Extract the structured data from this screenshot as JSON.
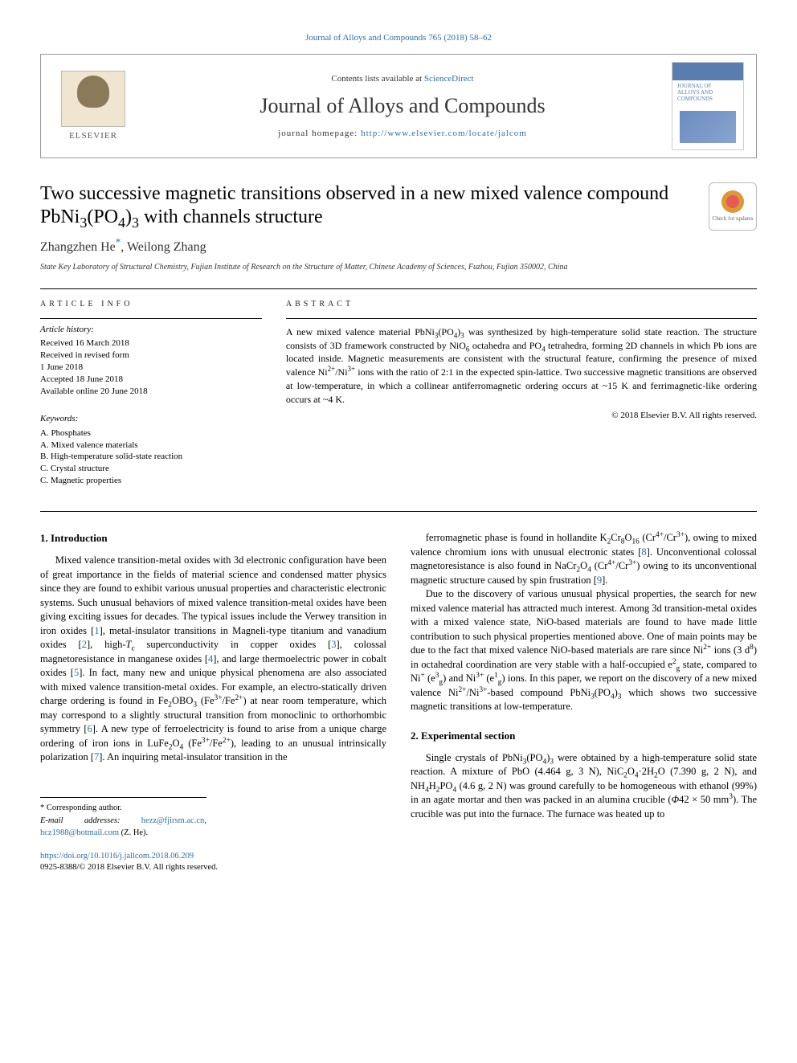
{
  "header": {
    "top_link_text": "Journal of Alloys and Compounds 765 (2018) 58–62",
    "contents_prefix": "Contents lists available at ",
    "contents_link": "ScienceDirect",
    "journal_name": "Journal of Alloys and Compounds",
    "homepage_label": "journal homepage: ",
    "homepage_url": "http://www.elsevier.com/locate/jalcom",
    "elsevier_label": "ELSEVIER",
    "cover_title_line1": "JOURNAL OF",
    "cover_title_line2": "ALLOYS AND",
    "cover_title_line3": "COMPOUNDS",
    "check_updates_label": "Check for updates"
  },
  "article": {
    "title_html": "Two successive magnetic transitions observed in a new mixed valence compound PbNi<sub>3</sub>(PO<sub>4</sub>)<sub>3</sub> with channels structure",
    "authors_html": "Zhangzhen He<sup>*</sup>, Weilong Zhang",
    "affiliation": "State Key Laboratory of Structural Chemistry, Fujian Institute of Research on the Structure of Matter, Chinese Academy of Sciences, Fuzhou, Fujian 350002, China"
  },
  "meta": {
    "info_heading": "ARTICLE INFO",
    "history_heading": "Article history:",
    "history_lines": [
      "Received 16 March 2018",
      "Received in revised form",
      "1 June 2018",
      "Accepted 18 June 2018",
      "Available online 20 June 2018"
    ],
    "keywords_heading": "Keywords:",
    "keywords": [
      "A. Phosphates",
      "A. Mixed valence materials",
      "B. High-temperature solid-state reaction",
      "C. Crystal structure",
      "C. Magnetic properties"
    ]
  },
  "abstract": {
    "heading": "ABSTRACT",
    "text_html": "A new mixed valence material PbNi<sub>3</sub>(PO<sub>4</sub>)<sub>3</sub> was synthesized by high-temperature solid state reaction. The structure consists of 3D framework constructed by NiO<sub>6</sub> octahedra and PO<sub>4</sub> tetrahedra, forming 2D channels in which Pb ions are located inside. Magnetic measurements are consistent with the structural feature, confirming the presence of mixed valence Ni<sup>2+</sup>/Ni<sup>3+</sup> ions with the ratio of 2:1 in the expected spin-lattice. Two successive magnetic transitions are observed at low-temperature, in which a collinear antiferromagnetic ordering occurs at ~15 K and ferrimagnetic-like ordering occurs at ~4 K.",
    "copyright": "© 2018 Elsevier B.V. All rights reserved."
  },
  "sections": {
    "intro_heading": "1. Introduction",
    "intro_col1_html": "Mixed valence transition-metal oxides with 3d electronic configuration have been of great importance in the fields of material science and condensed matter physics since they are found to exhibit various unusual properties and characteristic electronic systems. Such unusual behaviors of mixed valence transition-metal oxides have been giving exciting issues for decades. The typical issues include the Verwey transition in iron oxides [<a class=\"ref\">1</a>], metal-insulator transitions in Magneli-type titanium and vanadium oxides [<a class=\"ref\">2</a>], high-<span class=\"ital\">T</span><sub>c</sub> superconductivity in copper oxides [<a class=\"ref\">3</a>], colossal magnetoresistance in manganese oxides [<a class=\"ref\">4</a>], and large thermoelectric power in cobalt oxides [<a class=\"ref\">5</a>]. In fact, many new and unique physical phenomena are also associated with mixed valence transition-metal oxides. For example, an electro-statically driven charge ordering is found in Fe<sub>2</sub>OBO<sub>3</sub> (Fe<sup>3+</sup>/Fe<sup>2+</sup>) at near room temperature, which may correspond to a slightly structural transition from monoclinic to orthorhombic symmetry [<a class=\"ref\">6</a>]. A new type of ferroelectricity is found to arise from a unique charge ordering of iron ions in LuFe<sub>2</sub>O<sub>4</sub> (Fe<sup>3+</sup>/Fe<sup>2+</sup>), leading to an unusual intrinsically polarization [<a class=\"ref\">7</a>]. An inquiring metal-insulator transition in the",
    "intro_col2_p1_html": "ferromagnetic phase is found in hollandite K<sub>2</sub>Cr<sub>8</sub>O<sub>16</sub> (Cr<sup>4+</sup>/Cr<sup>3+</sup>), owing to mixed valence chromium ions with unusual electronic states [<a class=\"ref\">8</a>]. Unconventional colossal magnetoresistance is also found in NaCr<sub>2</sub>O<sub>4</sub> (Cr<sup>4+</sup>/Cr<sup>3+</sup>) owing to its unconventional magnetic structure caused by spin frustration [<a class=\"ref\">9</a>].",
    "intro_col2_p2_html": "Due to the discovery of various unusual physical properties, the search for new mixed valence material has attracted much interest. Among 3d transition-metal oxides with a mixed valence state, NiO-based materials are found to have made little contribution to such physical properties mentioned above. One of main points may be due to the fact that mixed valence NiO-based materials are rare since Ni<sup>2+</sup> ions (3 d<sup>8</sup>) in octahedral coordination are very stable with a half-occupied e<sup>2</sup><sub>g</sub> state, compared to Ni<sup>+</sup> (e<sup>3</sup><sub>g</sub>) and Ni<sup>3+</sup> (e<sup>1</sup><sub>g</sub>) ions. In this paper, we report on the discovery of a new mixed valence Ni<sup>2+</sup>/Ni<sup>3+</sup>-based compound PbNi<sub>3</sub>(PO<sub>4</sub>)<sub>3</sub> which shows two successive magnetic transitions at low-temperature.",
    "exp_heading": "2. Experimental section",
    "exp_p1_html": "Single crystals of PbNi<sub>3</sub>(PO<sub>4</sub>)<sub>3</sub> were obtained by a high-temperature solid state reaction. A mixture of PbO (4.464 g, 3 N), NiC<sub>2</sub>O<sub>4</sub>·2H<sub>2</sub>O (7.390 g, 2 N), and NH<sub>4</sub>H<sub>2</sub>PO<sub>4</sub> (4.6 g, 2 N) was ground carefully to be homogeneous with ethanol (99%) in an agate mortar and then was packed in an alumina crucible (<span class=\"ital\">Φ</span>42 × 50 mm<sup>3</sup>). The crucible was put into the furnace. The furnace was heated up to"
  },
  "footer": {
    "corr_label": "* Corresponding author.",
    "email_label": "E-mail addresses: ",
    "email1": "hezz@fjirsm.ac.cn",
    "email_sep": ", ",
    "email2": "hcz1988@hotmail.com",
    "email_tail": " (Z. He).",
    "doi": "https://doi.org/10.1016/j.jallcom.2018.06.209",
    "issn_line": "0925-8388/© 2018 Elsevier B.V. All rights reserved."
  },
  "colors": {
    "link": "#2e6da4",
    "text": "#000000",
    "border": "#999999",
    "bg": "#ffffff"
  }
}
